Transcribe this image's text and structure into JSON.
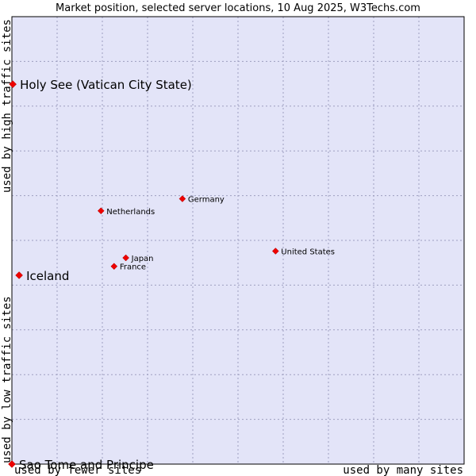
{
  "chart_data": {
    "type": "scatter",
    "title": "Market position, selected server locations, 10 Aug 2025, W3Techs.com",
    "xlabel_low": "used by fewer sites",
    "xlabel_high": "used by many sites",
    "ylabel_low": "used by low traffic sites",
    "ylabel_high": "used by high traffic sites",
    "xlim": [
      0,
      100
    ],
    "ylim": [
      0,
      100
    ],
    "grid": true,
    "points": [
      {
        "label": "Holy See (Vatican City State)",
        "x": 0.2,
        "y": 84.9,
        "size": "large"
      },
      {
        "label": "Iceland",
        "x": 1.6,
        "y": 42.2,
        "size": "large"
      },
      {
        "label": "Sao Tome and Principe",
        "x": 0.0,
        "y": 0.0,
        "size": "large"
      },
      {
        "label": "Germany",
        "x": 37.7,
        "y": 59.3,
        "size": "small"
      },
      {
        "label": "Netherlands",
        "x": 19.7,
        "y": 56.6,
        "size": "small"
      },
      {
        "label": "Japan",
        "x": 25.2,
        "y": 46.1,
        "size": "small"
      },
      {
        "label": "France",
        "x": 22.6,
        "y": 44.2,
        "size": "small"
      },
      {
        "label": "United States",
        "x": 58.3,
        "y": 47.6,
        "size": "small"
      }
    ]
  },
  "colors": {
    "plot_bg": "#e3e4f8",
    "point": "#ee0000",
    "border": "#000000"
  }
}
